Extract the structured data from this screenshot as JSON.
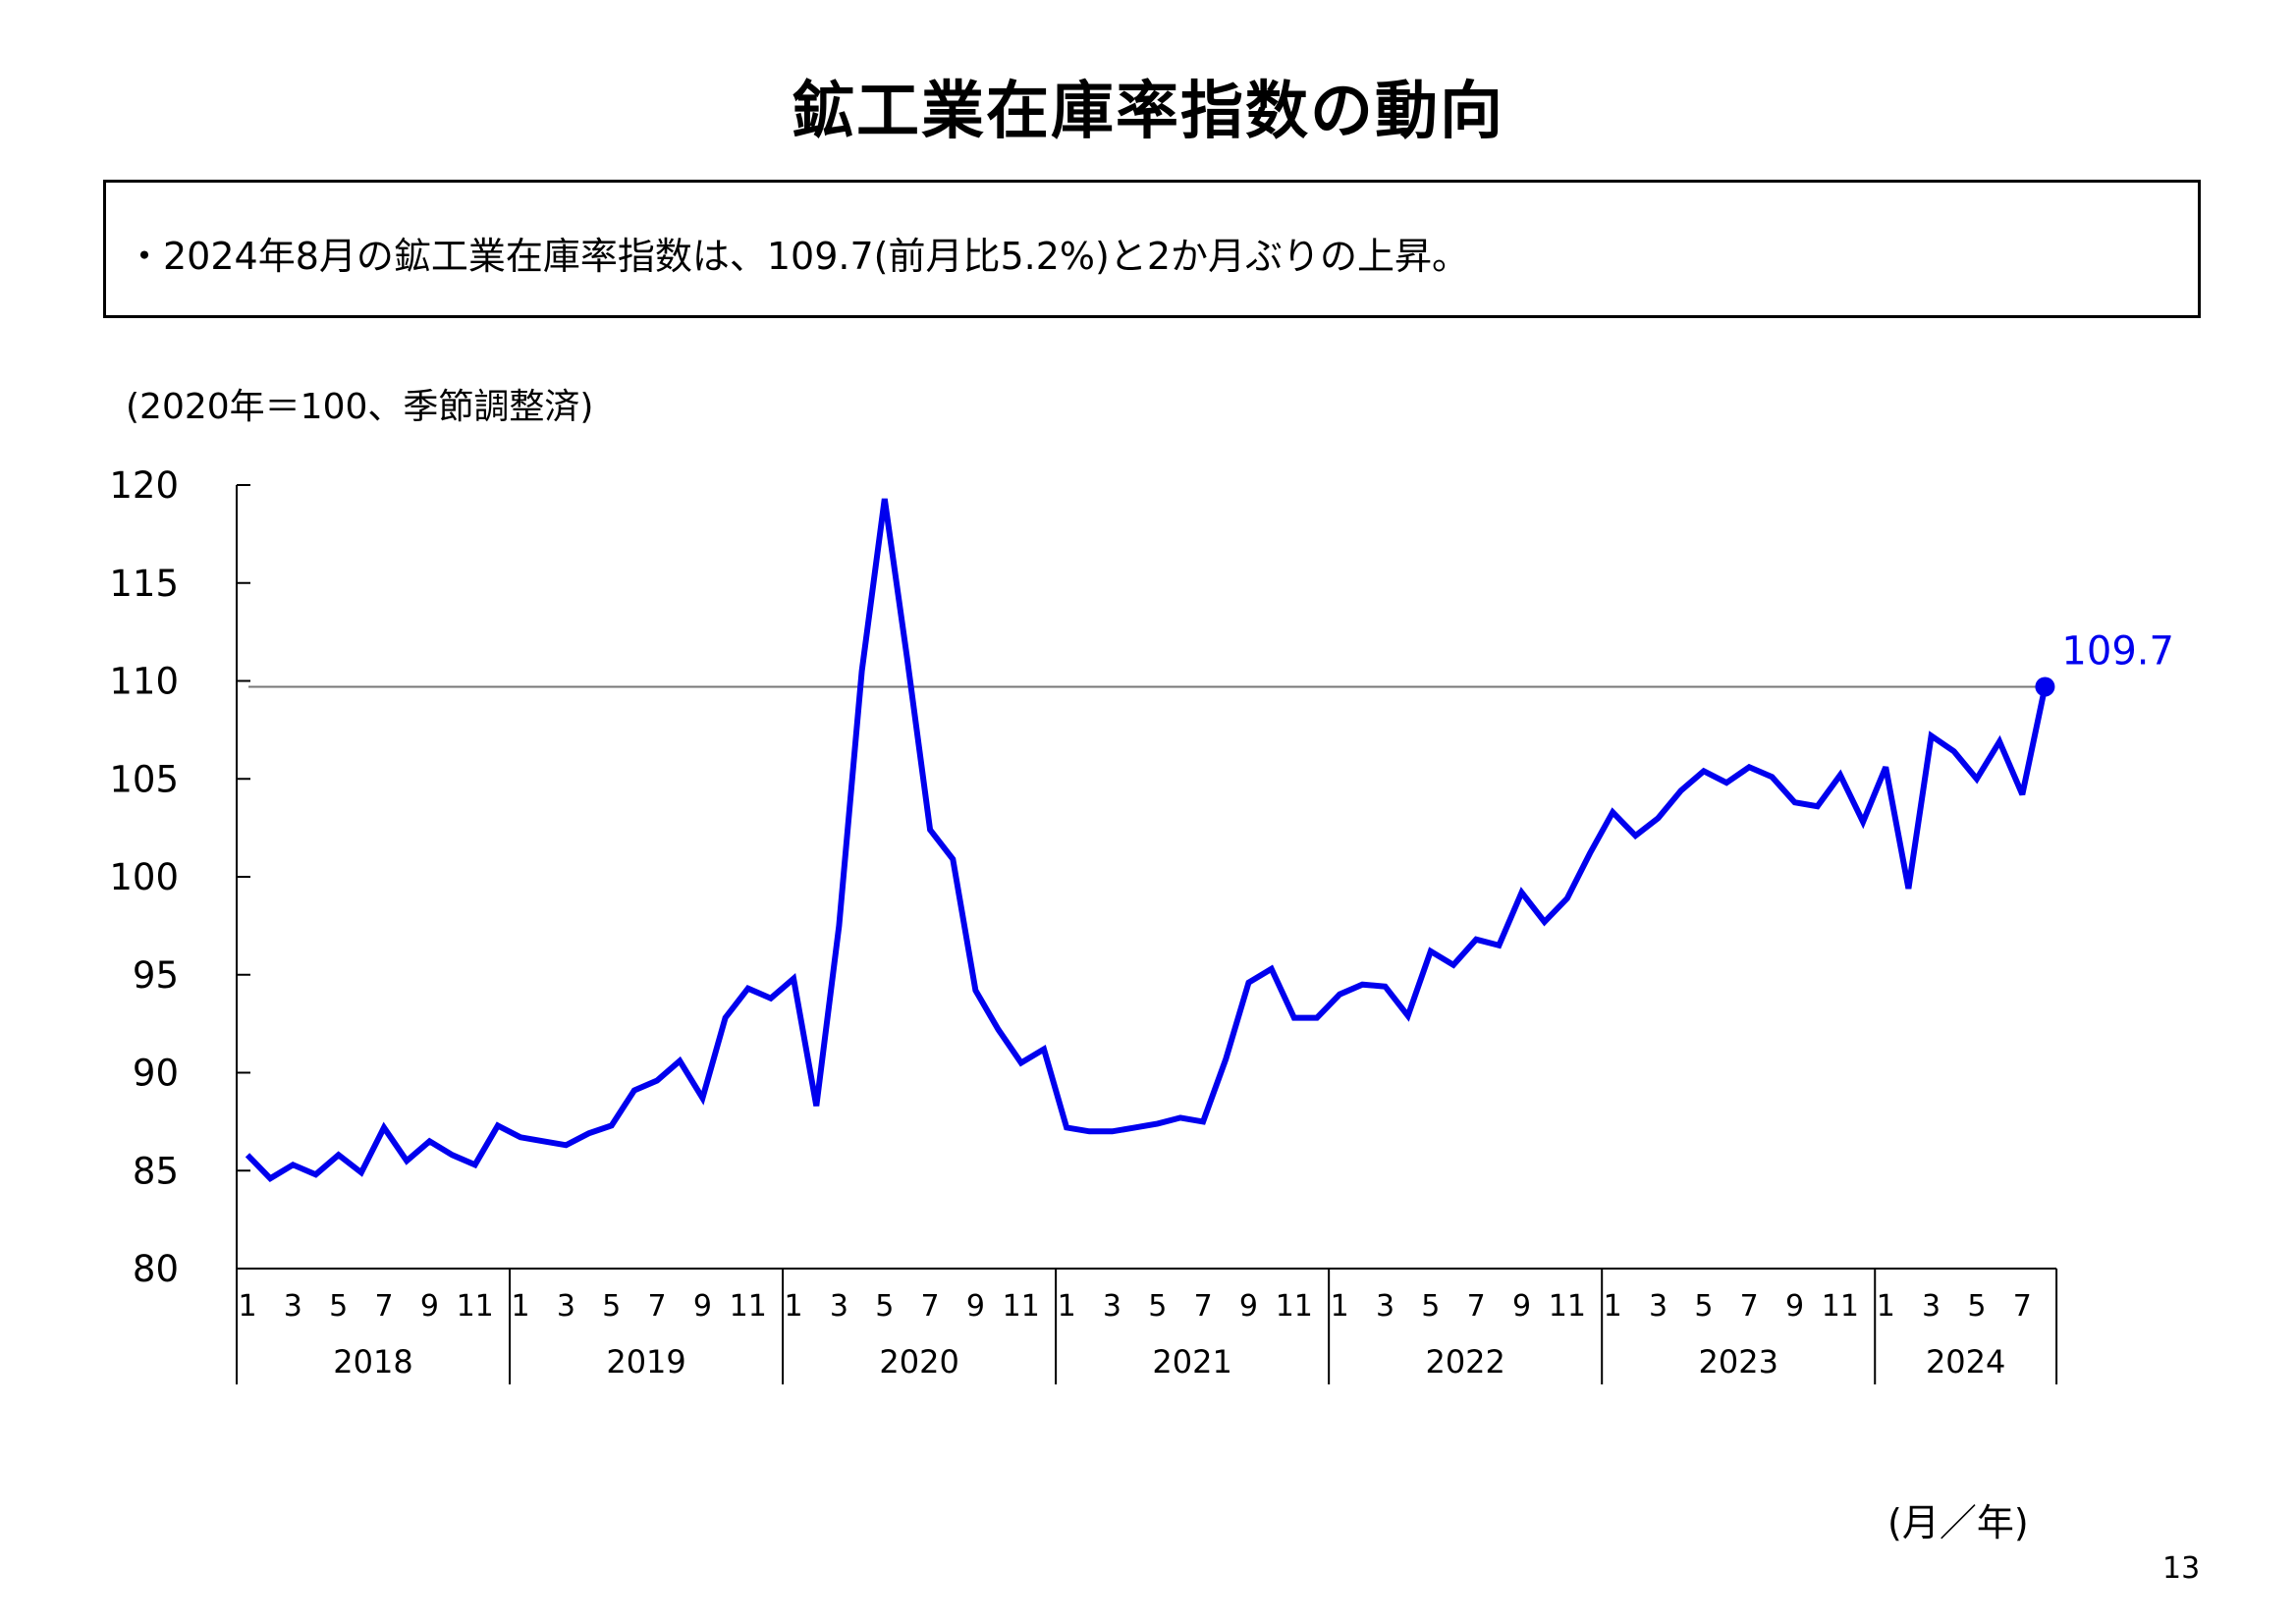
{
  "title": "鉱工業在庫率指数の動向",
  "summary": "・2024年8月の鉱工業在庫率指数は、109.7(前月比5.2%)と2か月ぶりの上昇。",
  "page_number": "13",
  "colors": {
    "series": "#0000ee",
    "reference_line": "#777777",
    "axis": "#000000"
  },
  "chart_data": {
    "type": "line",
    "title": "",
    "units_label": "(2020年＝100、季節調整済)",
    "xlabel": "(月／年)",
    "ylabel": "",
    "ylim": [
      80,
      120
    ],
    "yticks": [
      80,
      85,
      90,
      95,
      100,
      105,
      110,
      115,
      120
    ],
    "grid": false,
    "x_month_ticks": [
      "1",
      "3",
      "5",
      "7",
      "9",
      "11"
    ],
    "years": [
      "2018",
      "2019",
      "2020",
      "2021",
      "2022",
      "2023",
      "2024"
    ],
    "x": [
      "2018-01",
      "2018-02",
      "2018-03",
      "2018-04",
      "2018-05",
      "2018-06",
      "2018-07",
      "2018-08",
      "2018-09",
      "2018-10",
      "2018-11",
      "2018-12",
      "2019-01",
      "2019-02",
      "2019-03",
      "2019-04",
      "2019-05",
      "2019-06",
      "2019-07",
      "2019-08",
      "2019-09",
      "2019-10",
      "2019-11",
      "2019-12",
      "2020-01",
      "2020-02",
      "2020-03",
      "2020-04",
      "2020-05",
      "2020-06",
      "2020-07",
      "2020-08",
      "2020-09",
      "2020-10",
      "2020-11",
      "2020-12",
      "2021-01",
      "2021-02",
      "2021-03",
      "2021-04",
      "2021-05",
      "2021-06",
      "2021-07",
      "2021-08",
      "2021-09",
      "2021-10",
      "2021-11",
      "2021-12",
      "2022-01",
      "2022-02",
      "2022-03",
      "2022-04",
      "2022-05",
      "2022-06",
      "2022-07",
      "2022-08",
      "2022-09",
      "2022-10",
      "2022-11",
      "2022-12",
      "2023-01",
      "2023-02",
      "2023-03",
      "2023-04",
      "2023-05",
      "2023-06",
      "2023-07",
      "2023-08",
      "2023-09",
      "2023-10",
      "2023-11",
      "2023-12",
      "2024-01",
      "2024-02",
      "2024-03",
      "2024-04",
      "2024-05",
      "2024-06",
      "2024-07",
      "2024-08"
    ],
    "series": [
      {
        "values": [
          85.8,
          84.6,
          85.3,
          84.8,
          85.8,
          84.9,
          87.2,
          85.5,
          86.5,
          85.8,
          85.3,
          87.3,
          86.7,
          86.5,
          86.3,
          86.9,
          87.3,
          89.1,
          89.6,
          90.6,
          88.7,
          92.8,
          94.3,
          93.8,
          94.8,
          88.3,
          97.5,
          110.5,
          119.3,
          111.1,
          102.4,
          100.9,
          94.2,
          92.2,
          90.5,
          91.2,
          87.2,
          87.0,
          87.0,
          87.2,
          87.4,
          87.7,
          87.5,
          90.7,
          94.6,
          95.3,
          92.8,
          92.8,
          94.0,
          94.5,
          94.4,
          92.9,
          96.2,
          95.5,
          96.8,
          96.5,
          99.2,
          97.7,
          98.9,
          101.2,
          103.3,
          102.1,
          103.0,
          104.4,
          105.4,
          104.8,
          105.6,
          105.1,
          103.8,
          103.6,
          105.2,
          102.8,
          105.6,
          99.4,
          107.2,
          106.4,
          105.0,
          106.9,
          104.2,
          109.7
        ]
      }
    ],
    "reference_line": 109.7,
    "callout": {
      "label": "109.7",
      "value": 109.7
    }
  }
}
